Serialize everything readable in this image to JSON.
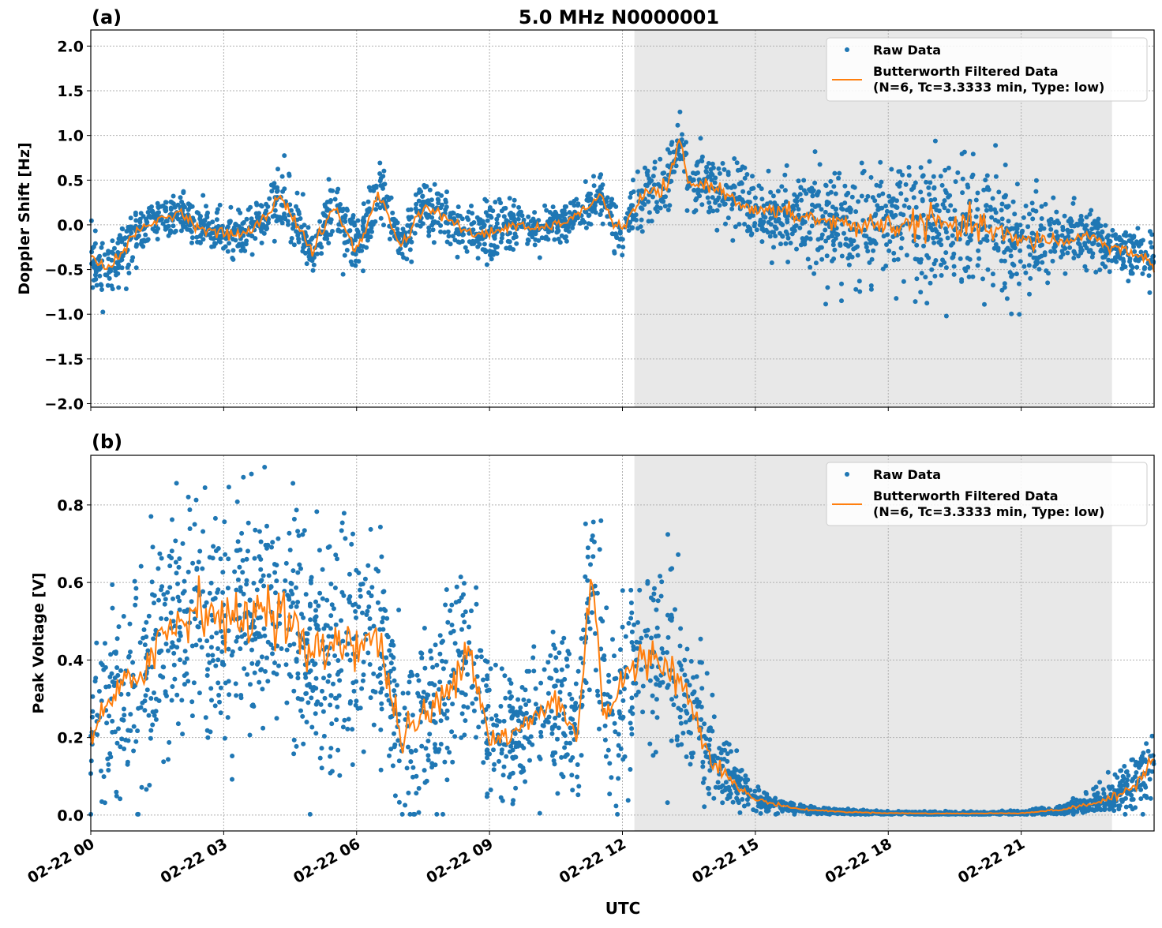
{
  "title": "5.0 MHz N0000001",
  "xlabel": "UTC",
  "x_tick_labels": [
    "02-22 00",
    "02-22 03",
    "02-22 06",
    "02-22 09",
    "02-22 12",
    "02-22 15",
    "02-22 18",
    "02-22 21"
  ],
  "x_ticks_hours": [
    0,
    3,
    6,
    9,
    12,
    15,
    18,
    21
  ],
  "xlim_hours": [
    0,
    24
  ],
  "shaded_interval_hours": [
    12.27,
    23.05
  ],
  "colors": {
    "raw": "#1f77b4",
    "filtered": "#ff7f0e",
    "shade": "#e8e8e8",
    "grid": "#b0b0b0"
  },
  "chart_data": [
    {
      "type": "scatter",
      "panel_label": "(a)",
      "ylabel": "Doppler Shift [Hz]",
      "ylim": [
        -2.04,
        2.18
      ],
      "y_ticks": [
        -2.0,
        -1.5,
        -1.0,
        -0.5,
        0.0,
        0.5,
        1.0,
        1.5,
        2.0
      ],
      "y_tick_labels": [
        "−2.0",
        "−1.5",
        "−1.0",
        "−0.5",
        "0.0",
        "0.5",
        "1.0",
        "1.5",
        "2.0"
      ],
      "grid": true,
      "legend": {
        "placement": "top-right",
        "raw": "Raw Data",
        "filtered_line1": "Butterworth Filtered Data",
        "filtered_line2": "(N=6, Tc=3.3333 min, Type: low)"
      },
      "series": [
        {
          "name": "Butterworth Filtered Data",
          "hours": [
            0,
            0.5,
            1,
            1.5,
            2,
            2.5,
            3,
            3.5,
            4,
            4.25,
            4.5,
            5,
            5.5,
            6,
            6.5,
            7,
            7.5,
            8,
            8.5,
            9,
            9.5,
            10,
            10.5,
            11,
            11.5,
            11.75,
            12,
            12.5,
            13,
            13.3,
            13.5,
            14,
            14.5,
            15,
            15.5,
            16,
            16.5,
            17,
            17.5,
            18,
            18.5,
            19,
            19.5,
            20,
            20.5,
            21,
            21.5,
            22,
            22.5,
            23,
            23.5,
            24
          ],
          "values": [
            -0.4,
            -0.45,
            -0.1,
            0.05,
            0.15,
            -0.05,
            -0.1,
            -0.1,
            0.1,
            0.35,
            0.15,
            -0.3,
            0.2,
            -0.3,
            0.35,
            -0.25,
            0.2,
            0.1,
            -0.1,
            -0.1,
            0.0,
            -0.05,
            0.0,
            0.1,
            0.35,
            0.05,
            -0.05,
            0.35,
            0.4,
            0.95,
            0.45,
            0.45,
            0.3,
            0.15,
            0.15,
            0.1,
            0.05,
            0.0,
            0.0,
            0.0,
            0.0,
            0.05,
            -0.05,
            0.0,
            -0.1,
            -0.2,
            -0.15,
            -0.2,
            -0.1,
            -0.25,
            -0.3,
            -0.45
          ]
        },
        {
          "name": "Raw Data",
          "envelope_hours": [
            0,
            1,
            2,
            3,
            4,
            5,
            6,
            7,
            8,
            9,
            10,
            11,
            12,
            13,
            14,
            15,
            16,
            17,
            18,
            19,
            20,
            21,
            22,
            23,
            24
          ],
          "half_spread": [
            0.3,
            0.25,
            0.2,
            0.25,
            0.3,
            0.3,
            0.3,
            0.3,
            0.25,
            0.3,
            0.2,
            0.2,
            0.25,
            0.3,
            0.3,
            0.3,
            0.45,
            0.55,
            0.6,
            0.7,
            0.7,
            0.55,
            0.3,
            0.25,
            0.3
          ]
        }
      ]
    },
    {
      "type": "scatter",
      "panel_label": "(b)",
      "ylabel": "Peak Voltage [V]",
      "ylim": [
        -0.041,
        0.928
      ],
      "y_ticks": [
        0.0,
        0.2,
        0.4,
        0.6,
        0.8
      ],
      "y_tick_labels": [
        "0.0",
        "0.2",
        "0.4",
        "0.6",
        "0.8"
      ],
      "grid": true,
      "legend": {
        "placement": "top-right",
        "raw": "Raw Data",
        "filtered_line1": "Butterworth Filtered Data",
        "filtered_line2": "(N=6, Tc=3.3333 min, Type: low)"
      },
      "series": [
        {
          "name": "Butterworth Filtered Data",
          "hours": [
            0,
            0.5,
            1,
            1.5,
            2,
            2.5,
            3,
            3.5,
            4,
            4.5,
            5,
            5.5,
            6,
            6.5,
            7,
            7.5,
            8,
            8.5,
            9,
            9.5,
            10,
            10.5,
            11,
            11.3,
            11.6,
            12,
            12.5,
            13,
            13.5,
            14,
            14.5,
            15,
            16,
            17,
            18,
            19,
            20,
            21,
            22,
            23,
            23.5,
            24
          ],
          "values": [
            0.2,
            0.3,
            0.35,
            0.45,
            0.5,
            0.55,
            0.5,
            0.5,
            0.55,
            0.5,
            0.4,
            0.45,
            0.45,
            0.45,
            0.2,
            0.25,
            0.3,
            0.45,
            0.2,
            0.2,
            0.25,
            0.3,
            0.2,
            0.65,
            0.25,
            0.35,
            0.4,
            0.4,
            0.3,
            0.15,
            0.08,
            0.04,
            0.015,
            0.008,
            0.005,
            0.004,
            0.004,
            0.005,
            0.015,
            0.04,
            0.07,
            0.15
          ]
        },
        {
          "name": "Raw Data",
          "envelope_hours": [
            0,
            1,
            2,
            3,
            4,
            5,
            6,
            7,
            8,
            9,
            10,
            11,
            12,
            13,
            14,
            15,
            16,
            17,
            18,
            19,
            20,
            21,
            22,
            23,
            24
          ],
          "half_spread": [
            0.15,
            0.25,
            0.3,
            0.28,
            0.28,
            0.28,
            0.28,
            0.2,
            0.25,
            0.15,
            0.15,
            0.2,
            0.25,
            0.25,
            0.1,
            0.03,
            0.01,
            0.006,
            0.004,
            0.004,
            0.004,
            0.005,
            0.012,
            0.04,
            0.1
          ]
        }
      ]
    }
  ]
}
